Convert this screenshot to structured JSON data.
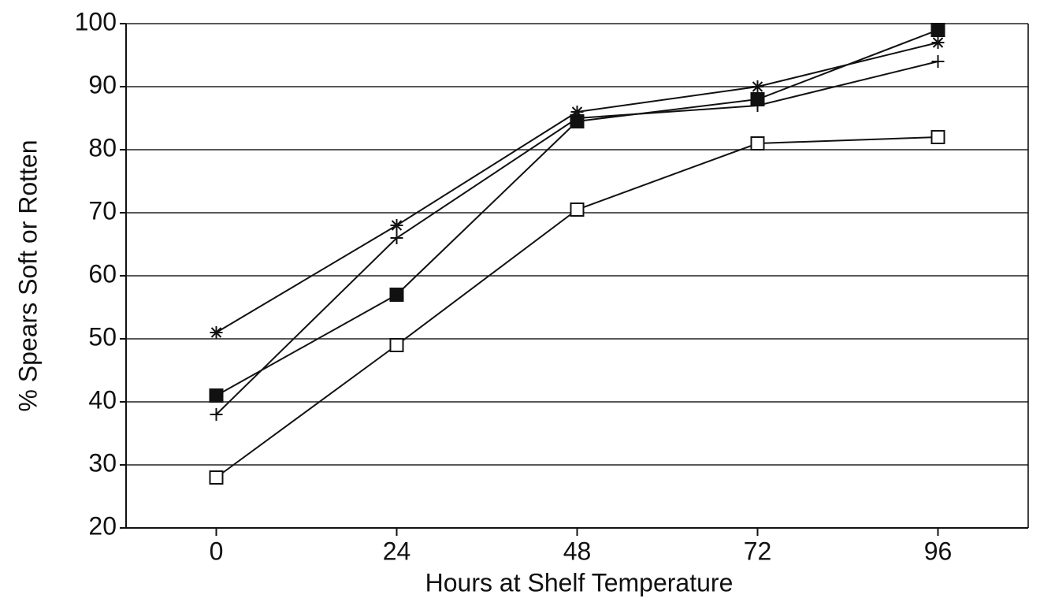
{
  "chart_data": {
    "type": "line",
    "x_label": "Hours at Shelf Temperature",
    "y_label": "% Spears Soft or Rotten",
    "x": [
      0,
      24,
      48,
      72,
      96
    ],
    "series": [
      {
        "color": "#111111",
        "marker": "asterisk",
        "values": [
          51,
          68,
          86,
          90,
          97
        ]
      },
      {
        "color": "#111111",
        "marker": "filled-square",
        "values": [
          41,
          57,
          84.5,
          88,
          99
        ]
      },
      {
        "color": "#111111",
        "marker": "plus",
        "values": [
          38,
          66,
          85,
          87,
          94
        ]
      },
      {
        "color": "#111111",
        "marker": "open-square",
        "values": [
          28,
          49,
          70.5,
          81,
          82
        ]
      }
    ],
    "xlim": [
      -12,
      108
    ],
    "xticks": [
      0,
      24,
      48,
      72,
      96
    ],
    "ylim": [
      20,
      100
    ],
    "yticks": [
      20,
      30,
      40,
      50,
      60,
      70,
      80,
      90,
      100
    ],
    "grid": true
  }
}
